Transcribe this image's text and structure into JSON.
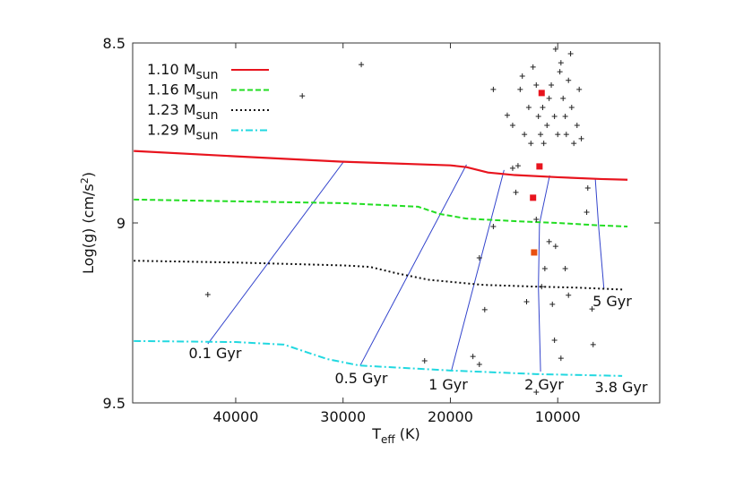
{
  "chart_data": {
    "type": "line",
    "xlabel_parts": [
      "T",
      "eff",
      " (K)"
    ],
    "ylabel_parts": [
      "Log(g) (cm/s",
      "2",
      ")"
    ],
    "legend_subscript": "sun",
    "legend": "upper left",
    "xlim": [
      49600,
      500
    ],
    "ylim": [
      8.5,
      9.5
    ],
    "xticks": [
      40000,
      30000,
      20000,
      10000
    ],
    "yticks": [
      8.5,
      9,
      9.5
    ],
    "series": [
      {
        "name": "1.10 M",
        "color": "#e8141e",
        "style": "solid",
        "x": [
          49500,
          40000,
          30000,
          20000,
          18500,
          16500,
          14000,
          10000,
          6000,
          3500
        ],
        "values": [
          8.8,
          8.815,
          8.83,
          8.84,
          8.845,
          8.86,
          8.867,
          8.873,
          8.878,
          8.88
        ]
      },
      {
        "name": "1.16 M",
        "color": "#22dd22",
        "style": "dashed",
        "x": [
          49500,
          40000,
          30000,
          23000,
          21000,
          18500,
          14000,
          10000,
          6000,
          3500
        ],
        "values": [
          8.935,
          8.94,
          8.945,
          8.955,
          8.975,
          8.988,
          8.995,
          9.0,
          9.007,
          9.01
        ]
      },
      {
        "name": "1.23 M",
        "color": "#111111",
        "style": "dotted",
        "x": [
          49500,
          40000,
          30000,
          27500,
          25000,
          22000,
          17000,
          12000,
          8000,
          4000
        ],
        "values": [
          9.105,
          9.11,
          9.118,
          9.122,
          9.14,
          9.158,
          9.172,
          9.177,
          9.18,
          9.185
        ]
      },
      {
        "name": "1.29 M",
        "color": "#22d8e0",
        "style": "dashdot",
        "x": [
          49500,
          40000,
          35500,
          33500,
          31500,
          28500,
          20000,
          12000,
          4000
        ],
        "values": [
          9.328,
          9.331,
          9.338,
          9.358,
          9.378,
          9.396,
          9.41,
          9.42,
          9.425
        ]
      }
    ],
    "isochrone_color": "#3344cc",
    "isochrones": [
      {
        "x": [
          42600,
          29900
        ],
        "values": [
          9.336,
          8.828
        ]
      },
      {
        "x": [
          28400,
          18500
        ],
        "values": [
          9.396,
          8.838
        ]
      },
      {
        "x": [
          19900,
          15000
        ],
        "values": [
          9.41,
          8.853
        ]
      },
      {
        "x": [
          11600,
          11800,
          11700,
          10750
        ],
        "values": [
          9.413,
          9.177,
          9.002,
          8.868
        ]
      },
      {
        "x": [
          5700,
          6200,
          6500
        ],
        "values": [
          9.182,
          9.007,
          8.878
        ]
      }
    ],
    "annotations": [
      "0.1 Gyr",
      "0.5 Gyr",
      "1 Gyr",
      "2 Gyr",
      "5 Gyr",
      "3.8 Gyr"
    ],
    "stars": {
      "color": "#222222",
      "x": [
        28300,
        33800,
        42600,
        22400,
        17300,
        17300,
        16800,
        16000,
        14700,
        14200,
        13500,
        13300,
        13100,
        12700,
        12500,
        12300,
        12000,
        11800,
        11600,
        11400,
        11300,
        11000,
        10800,
        10600,
        10300,
        10200,
        10000,
        9800,
        9700,
        9500,
        9300,
        9200,
        9000,
        8800,
        8700,
        8500,
        8200,
        8000,
        7800,
        14200,
        13700,
        12000,
        10800,
        10200,
        11500,
        11200,
        10500,
        10300,
        9700,
        9300,
        9000,
        7200,
        7300,
        6800,
        6700,
        12000,
        17900,
        12900,
        16000,
        13900
      ],
      "values": [
        8.56,
        8.647,
        9.199,
        9.383,
        9.393,
        9.097,
        9.241,
        8.629,
        8.701,
        8.729,
        8.629,
        8.592,
        8.754,
        8.679,
        8.779,
        8.567,
        8.617,
        8.704,
        8.754,
        8.679,
        8.779,
        8.729,
        8.654,
        8.617,
        8.704,
        8.517,
        8.754,
        8.58,
        8.555,
        8.654,
        8.704,
        8.754,
        8.604,
        8.53,
        8.679,
        8.779,
        8.729,
        8.629,
        8.766,
        8.848,
        8.841,
        8.99,
        9.052,
        9.065,
        9.177,
        9.127,
        9.226,
        9.326,
        9.376,
        9.127,
        9.201,
        8.903,
        8.97,
        9.239,
        9.338,
        9.47,
        9.371,
        9.219,
        9.01,
        8.915
      ]
    },
    "highlighted": {
      "colors": [
        "#e8141e",
        "#e8141e",
        "#e8141e",
        "#e85010"
      ],
      "x": [
        11500,
        11700,
        12300,
        12200
      ],
      "values": [
        8.639,
        8.843,
        8.93,
        9.082
      ]
    }
  }
}
